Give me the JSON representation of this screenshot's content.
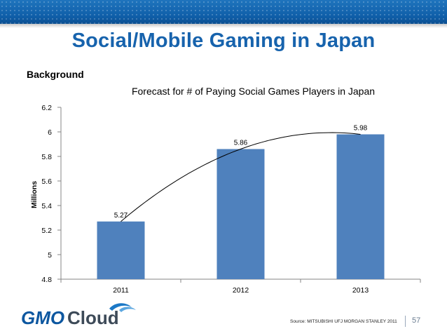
{
  "slide": {
    "title": "Social/Mobile Gaming in Japan",
    "section": "Background",
    "source": "Source: MITSUBISHI UFJ MORGAN STANLEY 2011",
    "page_number": "57",
    "logo": "GMO Cloud",
    "colors": {
      "title": "#1763ad",
      "topbar": "#1a6ab3",
      "bar": "#4f81bd"
    }
  },
  "chart_data": {
    "type": "bar",
    "title": "Forecast for # of Paying Social Games Players in Japan",
    "xlabel": "",
    "ylabel": "Millions",
    "categories": [
      "2011",
      "2012",
      "2013"
    ],
    "values": [
      5.27,
      5.86,
      5.98
    ],
    "value_labels": [
      "5.27",
      "5.86",
      "5.98"
    ],
    "ylim": [
      4.8,
      6.2
    ],
    "yticks": [
      4.8,
      5,
      5.2,
      5.4,
      5.6,
      5.8,
      6,
      6.2
    ],
    "ytick_labels": [
      "4.8",
      "5",
      "5.2",
      "5.4",
      "5.6",
      "5.8",
      "6",
      "6.2"
    ],
    "grid": false,
    "legend": "none",
    "trendline": "polynomial",
    "bar_color": "#4f81bd"
  }
}
